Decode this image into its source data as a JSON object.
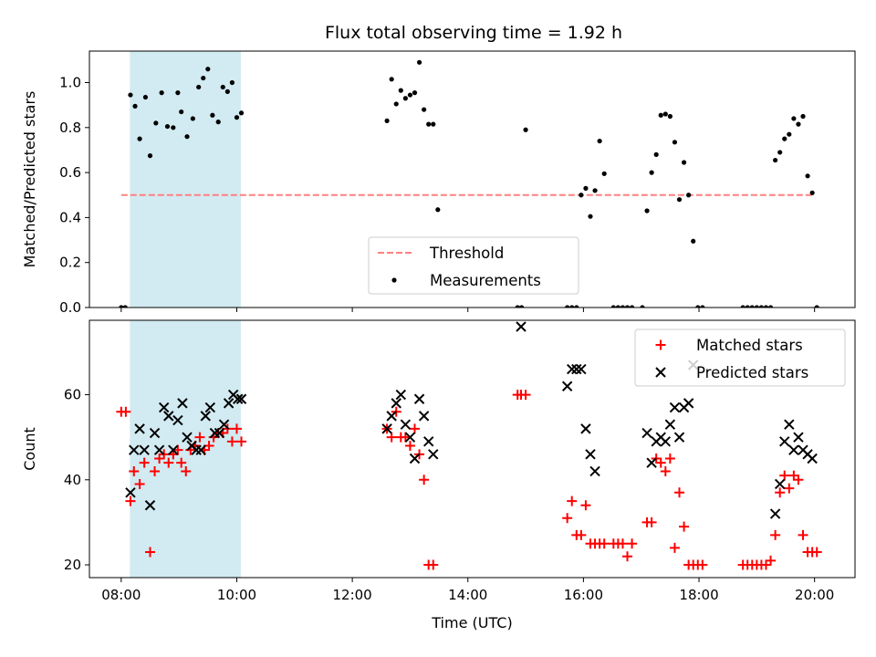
{
  "chart_data": [
    {
      "type": "scatter",
      "title": "Flux total observing time = 1.92 h",
      "ylabel": "Matched/Predicted stars",
      "xlabel": "",
      "xlim": [
        7.45,
        20.7
      ],
      "ylim": [
        0,
        1.14
      ],
      "yticks": [
        0.0,
        0.2,
        0.4,
        0.6,
        0.8,
        1.0
      ],
      "ytick_labels": [
        "0.0",
        "0.2",
        "0.4",
        "0.6",
        "0.8",
        "1.0"
      ],
      "xticks": [
        8,
        10,
        12,
        14,
        16,
        18,
        20
      ],
      "highlight_span": {
        "from": 8.15,
        "to": 10.07,
        "color": "#add8e6"
      },
      "legend": {
        "position": "lower center"
      },
      "series": [
        {
          "name": "Threshold",
          "kind": "line",
          "style": "dashed",
          "color": "#ff8080",
          "x": [
            8.0,
            20.0
          ],
          "y": [
            0.5,
            0.5
          ]
        },
        {
          "name": "Measurements",
          "kind": "scatter",
          "marker": "dot",
          "color": "#000000",
          "x": [
            8.0,
            8.07,
            8.16,
            8.24,
            8.32,
            8.42,
            8.5,
            8.6,
            8.7,
            8.8,
            8.9,
            8.98,
            9.04,
            9.14,
            9.24,
            9.34,
            9.42,
            9.5,
            9.58,
            9.68,
            9.76,
            9.84,
            9.92,
            10.0,
            10.08,
            12.6,
            12.68,
            12.76,
            12.84,
            12.92,
            13.0,
            13.08,
            13.16,
            13.24,
            13.32,
            13.4,
            13.48,
            14.86,
            14.93,
            15.0,
            15.72,
            15.8,
            15.88,
            15.96,
            16.04,
            16.12,
            16.2,
            16.28,
            16.36,
            16.52,
            16.6,
            16.68,
            16.76,
            16.84,
            17.02,
            17.1,
            17.18,
            17.26,
            17.34,
            17.42,
            17.5,
            17.58,
            17.66,
            17.74,
            17.82,
            17.9,
            17.98,
            18.06,
            18.76,
            18.84,
            18.92,
            19.0,
            19.08,
            19.16,
            19.24,
            19.32,
            19.4,
            19.48,
            19.56,
            19.64,
            19.72,
            19.8,
            19.88,
            19.96,
            20.04
          ],
          "y": [
            0.0,
            0.0,
            0.945,
            0.895,
            0.75,
            0.935,
            0.675,
            0.82,
            0.955,
            0.805,
            0.8,
            0.955,
            0.87,
            0.76,
            0.84,
            0.98,
            1.02,
            1.06,
            0.855,
            0.825,
            0.98,
            0.96,
            1.0,
            0.845,
            0.865,
            0.83,
            1.015,
            0.905,
            0.965,
            0.93,
            0.945,
            0.955,
            1.09,
            0.88,
            0.815,
            0.815,
            0.435,
            0.0,
            0.0,
            0.79,
            0.0,
            0.0,
            0.0,
            0.5,
            0.53,
            0.405,
            0.52,
            0.74,
            0.595,
            0.0,
            0.0,
            0.0,
            0.0,
            0.0,
            0.0,
            0.43,
            0.6,
            0.68,
            0.855,
            0.86,
            0.85,
            0.735,
            0.48,
            0.645,
            0.5,
            0.295,
            0.0,
            0.0,
            0.0,
            0.0,
            0.0,
            0.0,
            0.0,
            0.0,
            0.0,
            0.655,
            0.69,
            0.75,
            0.77,
            0.84,
            0.815,
            0.85,
            0.585,
            0.51,
            0.0
          ]
        }
      ]
    },
    {
      "type": "scatter",
      "title": "",
      "ylabel": "Count",
      "xlabel": "Time (UTC)",
      "xlim": [
        7.45,
        20.7
      ],
      "ylim": [
        17,
        77.5
      ],
      "yticks": [
        20,
        40,
        60
      ],
      "ytick_labels": [
        "20",
        "40",
        "60"
      ],
      "xticks": [
        8,
        10,
        12,
        14,
        16,
        18,
        20
      ],
      "xtick_labels": [
        "08:00",
        "10:00",
        "12:00",
        "14:00",
        "16:00",
        "18:00",
        "20:00"
      ],
      "highlight_span": {
        "from": 8.15,
        "to": 10.07,
        "color": "#add8e6"
      },
      "legend": {
        "position": "upper right"
      },
      "series": [
        {
          "name": "Matched stars",
          "kind": "scatter",
          "marker": "plus",
          "color": "#ff0000",
          "x": [
            8.0,
            8.08,
            8.16,
            8.22,
            8.32,
            8.4,
            8.5,
            8.58,
            8.66,
            8.74,
            8.82,
            8.9,
            8.98,
            9.04,
            9.12,
            9.2,
            9.28,
            9.36,
            9.44,
            9.52,
            9.6,
            9.68,
            9.76,
            9.84,
            9.92,
            10.0,
            10.08,
            12.6,
            12.68,
            12.76,
            12.84,
            12.92,
            13.0,
            13.08,
            13.16,
            13.24,
            13.32,
            13.4,
            14.86,
            14.92,
            15.0,
            15.72,
            15.8,
            15.88,
            15.96,
            16.04,
            16.12,
            16.2,
            16.28,
            16.36,
            16.52,
            16.6,
            16.68,
            16.76,
            16.84,
            17.1,
            17.18,
            17.26,
            17.34,
            17.42,
            17.5,
            17.58,
            17.66,
            17.74,
            17.82,
            17.9,
            17.98,
            18.06,
            18.76,
            18.84,
            18.92,
            19.0,
            19.08,
            19.16,
            19.24,
            19.32,
            19.4,
            19.48,
            19.56,
            19.64,
            19.72,
            19.8,
            19.88,
            19.96,
            20.04
          ],
          "y": [
            56,
            56,
            35,
            42,
            39,
            44,
            23,
            42,
            45,
            46,
            44,
            46,
            47,
            44,
            42,
            47,
            48,
            50,
            47,
            48,
            50,
            51,
            51,
            52,
            49,
            52,
            49,
            52,
            50,
            56,
            50,
            50,
            48,
            52,
            46,
            40,
            20,
            20,
            60,
            60,
            60,
            31,
            35,
            27,
            27,
            34,
            25,
            25,
            25,
            25,
            25,
            25,
            25,
            22,
            25,
            30,
            30,
            45,
            44,
            42,
            45,
            24,
            37,
            29,
            20,
            20,
            20,
            20,
            20,
            20,
            20,
            20,
            20,
            20,
            21,
            27,
            37,
            41,
            38,
            41,
            40,
            27,
            23,
            23,
            23
          ],
          "x_note": ""
        },
        {
          "name": "Predicted stars",
          "kind": "scatter",
          "marker": "x",
          "color": "#000000",
          "x": [
            8.16,
            8.22,
            8.32,
            8.4,
            8.5,
            8.58,
            8.66,
            8.74,
            8.82,
            8.9,
            8.98,
            9.06,
            9.14,
            9.22,
            9.3,
            9.38,
            9.46,
            9.54,
            9.62,
            9.7,
            9.78,
            9.86,
            9.94,
            10.02,
            10.08,
            12.6,
            12.68,
            12.76,
            12.84,
            12.92,
            13.0,
            13.08,
            13.16,
            13.24,
            13.32,
            13.4,
            14.92,
            15.72,
            15.8,
            15.88,
            15.96,
            16.04,
            16.12,
            16.2,
            17.1,
            17.18,
            17.26,
            17.34,
            17.42,
            17.5,
            17.58,
            17.66,
            17.74,
            17.82,
            17.9,
            19.32,
            19.4,
            19.48,
            19.56,
            19.64,
            19.72,
            19.8,
            19.88,
            19.96
          ],
          "y": [
            37,
            47,
            52,
            47,
            34,
            51,
            47,
            57,
            55,
            47,
            54,
            58,
            50,
            48,
            47,
            47,
            55,
            57,
            51,
            51,
            53,
            58,
            60,
            59,
            59,
            52,
            55,
            58,
            60,
            53,
            50,
            45,
            59,
            55,
            49,
            46,
            76,
            62,
            66,
            66,
            66,
            52,
            46,
            42,
            51,
            44,
            49,
            50,
            49,
            53,
            57,
            50,
            57,
            58,
            67,
            32,
            39,
            49,
            53,
            47,
            50,
            47,
            46,
            45
          ]
        }
      ]
    }
  ]
}
